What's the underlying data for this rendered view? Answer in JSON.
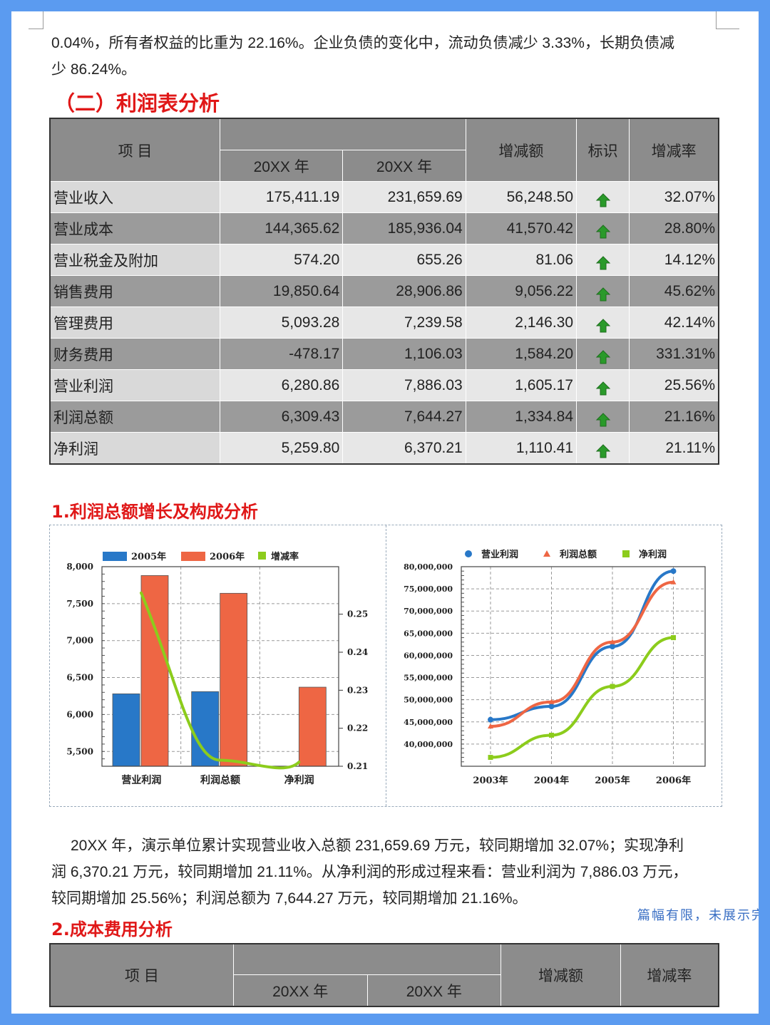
{
  "intro": {
    "line1": "0.04%，所有者权益的比重为 22.16%。企业负债的变化中，流动负债减少 3.33%，长期负债减",
    "line2": "少 86.24%。"
  },
  "section_title": "（二）利润表分析",
  "profit_table": {
    "col_item": "项  目",
    "col_year1": "20XX 年",
    "col_year2": "20XX 年",
    "col_change": "增减额",
    "col_flag": "标识",
    "col_rate": "增减率",
    "rows": [
      {
        "name": "营业收入",
        "y1": "175,411.19",
        "y2": "231,659.69",
        "chg": "56,248.50",
        "rate": "32.07%"
      },
      {
        "name": "营业成本",
        "y1": "144,365.62",
        "y2": "185,936.04",
        "chg": "41,570.42",
        "rate": "28.80%"
      },
      {
        "name": "营业税金及附加",
        "y1": "574.20",
        "y2": "655.26",
        "chg": "81.06",
        "rate": "14.12%"
      },
      {
        "name": "销售费用",
        "y1": "19,850.64",
        "y2": "28,906.86",
        "chg": "9,056.22",
        "rate": "45.62%"
      },
      {
        "name": "管理费用",
        "y1": "5,093.28",
        "y2": "7,239.58",
        "chg": "2,146.30",
        "rate": "42.14%"
      },
      {
        "name": "财务费用",
        "y1": "-478.17",
        "y2": "1,106.03",
        "chg": "1,584.20",
        "rate": "331.31%"
      },
      {
        "name": "营业利润",
        "y1": "6,280.86",
        "y2": "7,886.03",
        "chg": "1,605.17",
        "rate": "25.56%"
      },
      {
        "name": "利润总额",
        "y1": "6,309.43",
        "y2": "7,644.27",
        "chg": "1,334.84",
        "rate": "21.16%"
      },
      {
        "name": "净利润",
        "y1": "5,259.80",
        "y2": "6,370.21",
        "chg": "1,110.41",
        "rate": "21.11%"
      }
    ],
    "flag_icon": "up-arrow-icon",
    "flag_color": "#2a9a2a"
  },
  "subsection1_title": "1.利润总额增长及构成分析",
  "chart_data": [
    {
      "type": "bar",
      "categories": [
        "营业利润",
        "利润总额",
        "净利润"
      ],
      "series": [
        {
          "name": "2005年",
          "values": [
            6280,
            6310,
            5260
          ],
          "color": "#2878c8"
        },
        {
          "name": "2006年",
          "values": [
            7880,
            7640,
            6370
          ],
          "color": "#ee6644"
        }
      ],
      "line_series": {
        "name": "增减率",
        "values": [
          0.2556,
          0.2116,
          0.2111
        ],
        "color": "#8ccc1c"
      },
      "ylim": [
        5300,
        8000
      ],
      "yticks": [
        "8,000",
        "7,500",
        "7,000",
        "6,500",
        "6,000",
        "5,500"
      ],
      "y2lim": [
        0.21,
        0.2625
      ],
      "y2ticks": [
        "0.25",
        "0.24",
        "0.23",
        "0.22",
        "0.21"
      ],
      "legend": "top",
      "grid": true
    },
    {
      "type": "line",
      "x": [
        "2003年",
        "2004年",
        "2005年",
        "2006年"
      ],
      "series": [
        {
          "name": "营业利润",
          "values": [
            45500000,
            48500000,
            62000000,
            79000000
          ],
          "color": "#2878c8",
          "marker": "circle"
        },
        {
          "name": "利润总额",
          "values": [
            44000000,
            49500000,
            63000000,
            76500000
          ],
          "color": "#ee6644",
          "marker": "triangle"
        },
        {
          "name": "净利润",
          "values": [
            37000000,
            42000000,
            53000000,
            64000000
          ],
          "color": "#8ccc1c",
          "marker": "square"
        }
      ],
      "ylim": [
        35000000,
        80000000
      ],
      "yticks": [
        "80,000,000",
        "75,000,000",
        "70,000,000",
        "65,000,000",
        "60,000,000",
        "55,000,000",
        "50,000,000",
        "45,000,000",
        "40,000,000"
      ],
      "legend": "top",
      "grid": true
    }
  ],
  "summary": {
    "line1": "20XX 年，演示单位累计实现营业收入总额 231,659.69 万元，较同期增加 32.07%；实现净利",
    "line2": "润 6,370.21 万元，较同期增加 21.11%。从净利润的形成过程来看：营业利润为 7,886.03 万元，",
    "line3": "较同期增加 25.56%；利润总额为 7,644.27 万元，较同期增加 21.16%。"
  },
  "subsection2_title": "2.成本费用分析",
  "cost_table": {
    "col_item": "项  目",
    "col_year1": "20XX 年",
    "col_year2": "20XX 年",
    "col_change": "增减额",
    "col_rate": "增减率"
  },
  "truncation_note": "篇幅有限，未展示完"
}
